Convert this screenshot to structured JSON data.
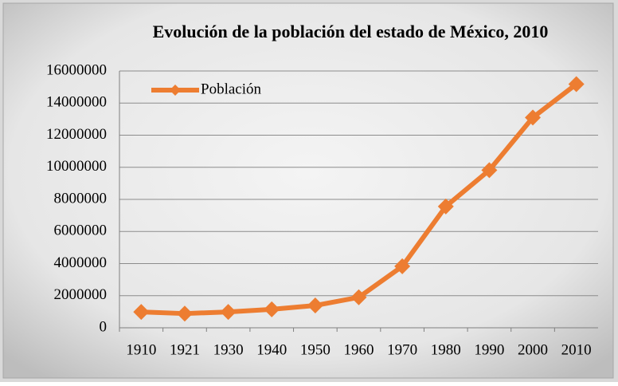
{
  "chart_data": {
    "type": "line",
    "title": "Evolución de la población del estado de México, 2010",
    "categories": [
      "1910",
      "1921",
      "1930",
      "1940",
      "1950",
      "1960",
      "1970",
      "1980",
      "1990",
      "2000",
      "2010"
    ],
    "series": [
      {
        "name": "Población",
        "color": "#ed7d31",
        "values": [
          990000,
          885000,
          990000,
          1150000,
          1390000,
          1900000,
          3830000,
          7560000,
          9820000,
          13100000,
          15180000
        ]
      }
    ],
    "ylim": [
      0,
      16000000
    ],
    "yticks": [
      0,
      2000000,
      4000000,
      6000000,
      8000000,
      10000000,
      12000000,
      14000000,
      16000000
    ],
    "grid": true,
    "legend": "top-left"
  }
}
